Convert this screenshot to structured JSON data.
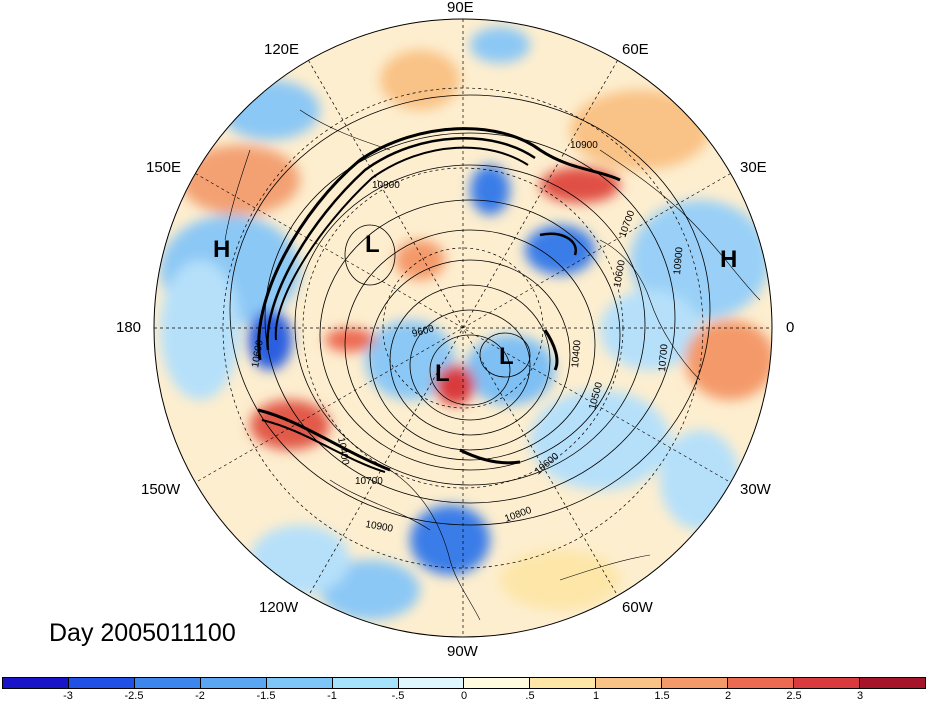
{
  "map": {
    "lon_labels": [
      "90E",
      "60E",
      "30E",
      "0",
      "30W",
      "60W",
      "90W",
      "120W",
      "150W",
      "180",
      "150E",
      "120E"
    ],
    "pressure_centers": [
      "H",
      "L",
      "L",
      "L",
      "H"
    ],
    "contour_labels": [
      "10900",
      "10900",
      "10700",
      "10600",
      "10900",
      "10700",
      "10500",
      "10400",
      "10600",
      "9600",
      "10800",
      "10900",
      "10700",
      "10400",
      "10600"
    ],
    "date_label": "Day 2005011100"
  },
  "colorbar": {
    "ticks": [
      "-3",
      "-2.5",
      "-2",
      "-1.5",
      "-1",
      "-.5",
      "0",
      ".5",
      "1",
      "1.5",
      "2",
      "2.5",
      "3"
    ],
    "colors": [
      "#1a14c8",
      "#2050e6",
      "#3c86ee",
      "#5aa6f3",
      "#7ec6f8",
      "#a6e2fc",
      "#dff6fe",
      "#fefbdf",
      "#fde6a8",
      "#f9c286",
      "#f49a6a",
      "#ec6a52",
      "#d93a3e",
      "#a6142a"
    ]
  }
}
